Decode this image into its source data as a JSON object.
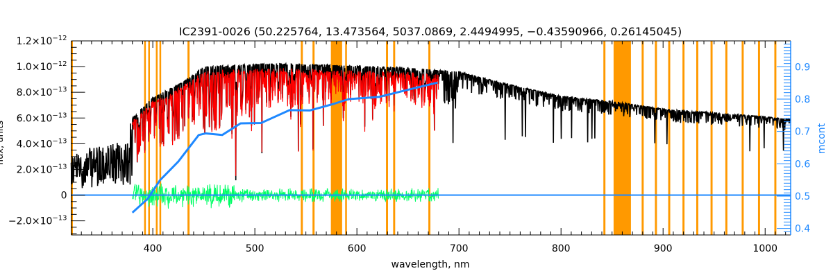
{
  "chart_data": {
    "type": "line",
    "title": "IC2391-0026   (50.225764, 13.473564, 5037.0869, 2.4494995, −0.43590966, 0.26145045)",
    "xlabel": "wavelength, nm",
    "ylabel": "flux, units",
    "y2label": "mcont",
    "xlim": [
      320,
      1025
    ],
    "ylim": [
      -3.1e-13,
      1.2e-12
    ],
    "y2lim": [
      0.38,
      0.98
    ],
    "grid": false,
    "x_ticks": [
      400,
      500,
      600,
      700,
      800,
      900,
      1000
    ],
    "x_tick_labels": [
      "400",
      "500",
      "600",
      "700",
      "800",
      "900",
      "1000"
    ],
    "y_ticks": [
      {
        "value": 1.2e-12,
        "mantissa": "1.2×10",
        "exp": "−12"
      },
      {
        "value": 1e-12,
        "mantissa": "1.0×10",
        "exp": "−12"
      },
      {
        "value": 8e-13,
        "mantissa": "8.0×10",
        "exp": "−13"
      },
      {
        "value": 6e-13,
        "mantissa": "6.0×10",
        "exp": "−13"
      },
      {
        "value": 4e-13,
        "mantissa": "4.0×10",
        "exp": "−13"
      },
      {
        "value": 2e-13,
        "mantissa": "2.0×10",
        "exp": "−13"
      },
      {
        "value": 0,
        "mantissa": "0",
        "exp": ""
      },
      {
        "value": -2e-13,
        "mantissa": "−2.0×10",
        "exp": "−13"
      }
    ],
    "y2_ticks": [
      0.4,
      0.5,
      0.6,
      0.7,
      0.8,
      0.9
    ],
    "y2_tick_labels": [
      "0.4",
      "0.5",
      "0.6",
      "0.7",
      "0.8",
      "0.9"
    ],
    "masked_regions_nm": [
      [
        320,
        321.5
      ],
      [
        391.5,
        393
      ],
      [
        395.5,
        397
      ],
      [
        403,
        404.5
      ],
      [
        406.5,
        408
      ],
      [
        434,
        436
      ],
      [
        545,
        547
      ],
      [
        556.5,
        558.5
      ],
      [
        574.5,
        585.5
      ],
      [
        588.5,
        590
      ],
      [
        628.5,
        630.5
      ],
      [
        635.5,
        637.5
      ],
      [
        670,
        672
      ],
      [
        841.5,
        843.5
      ],
      [
        851.5,
        868.5
      ],
      [
        879,
        881
      ],
      [
        892,
        894
      ],
      [
        905,
        907
      ],
      [
        919,
        921
      ],
      [
        932.5,
        934.5
      ],
      [
        946.5,
        948.5
      ],
      [
        961,
        963
      ],
      [
        977,
        979
      ],
      [
        993,
        995
      ],
      [
        1009,
        1011
      ]
    ],
    "series": [
      {
        "name": "observed",
        "color": "#000000",
        "axis": "left",
        "range": [
          320,
          1025
        ],
        "continuum": [
          [
            320,
            3.4e-13
          ],
          [
            370,
            4.2e-13
          ],
          [
            380,
            6e-13
          ],
          [
            400,
            7.6e-13
          ],
          [
            430,
            8.8e-13
          ],
          [
            450,
            1e-12
          ],
          [
            520,
            1.025e-12
          ],
          [
            600,
            1.005e-12
          ],
          [
            650,
            9.9e-13
          ],
          [
            700,
            9.6e-13
          ],
          [
            750,
            8.6e-13
          ],
          [
            800,
            7.7e-13
          ],
          [
            850,
            7.3e-13
          ],
          [
            900,
            6.7e-13
          ],
          [
            1000,
            6.1e-13
          ],
          [
            1025,
            5.9e-13
          ]
        ]
      },
      {
        "name": "model",
        "color": "#ff0000",
        "axis": "left",
        "range": [
          380,
          680
        ]
      },
      {
        "name": "residuals",
        "color": "#00ff66",
        "axis": "left",
        "range": [
          380,
          680
        ],
        "amplitude": 1e-13
      },
      {
        "name": "zero-line",
        "color": "#1e88ff",
        "axis": "left",
        "range": [
          320,
          1025
        ],
        "value": 0
      },
      {
        "name": "mcont",
        "color": "#1e88ff",
        "axis": "right",
        "x": [
          380,
          395,
          407,
          425,
          445,
          452,
          468,
          486,
          506,
          534,
          554,
          577,
          592,
          622,
          645,
          679
        ],
        "y": [
          0.449,
          0.492,
          0.549,
          0.607,
          0.689,
          0.694,
          0.689,
          0.725,
          0.726,
          0.766,
          0.765,
          0.785,
          0.8,
          0.807,
          0.825,
          0.851
        ]
      }
    ]
  }
}
